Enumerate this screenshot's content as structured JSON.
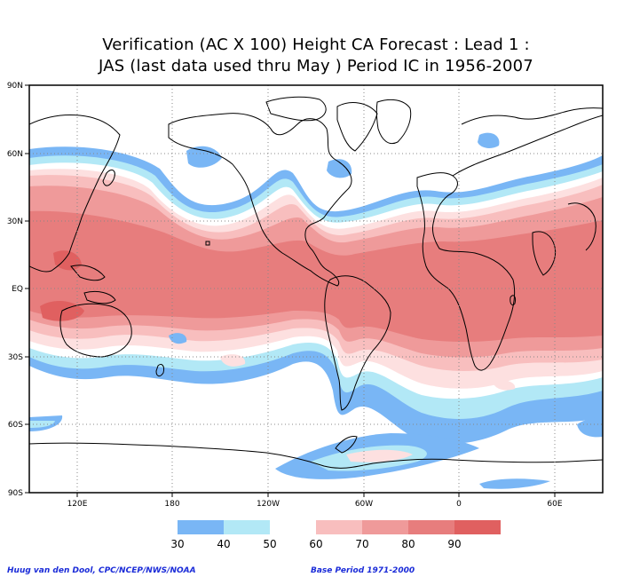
{
  "title_line1": "Verification (AC X 100) Height CA Forecast : Lead 1 :",
  "title_line2": "JAS (last data used thru May ) Period IC in 1956-2007",
  "lat_labels": [
    "90N",
    "60N",
    "30N",
    "EQ",
    "30S",
    "60S",
    "90S"
  ],
  "lat_values": [
    90,
    60,
    30,
    0,
    -30,
    -60,
    -90
  ],
  "lon_labels": [
    "120E",
    "180",
    "120W",
    "60W",
    "0",
    "60E"
  ],
  "lon_values": [
    120,
    180,
    240,
    300,
    360,
    420
  ],
  "colorbar": {
    "labels": [
      "30",
      "40",
      "50",
      "60",
      "70",
      "80",
      "90"
    ],
    "colors": [
      "#79b6f5",
      "#b2e8f6",
      "#ffffff",
      "#fde0e0",
      "#f8bebe",
      "#ef9a9a",
      "#e77d7d",
      "#e06060"
    ]
  },
  "credit": "Huug van den Dool, CPC/NCEP/NWS/NOAA",
  "base_period": "Base Period 1971-2000"
}
